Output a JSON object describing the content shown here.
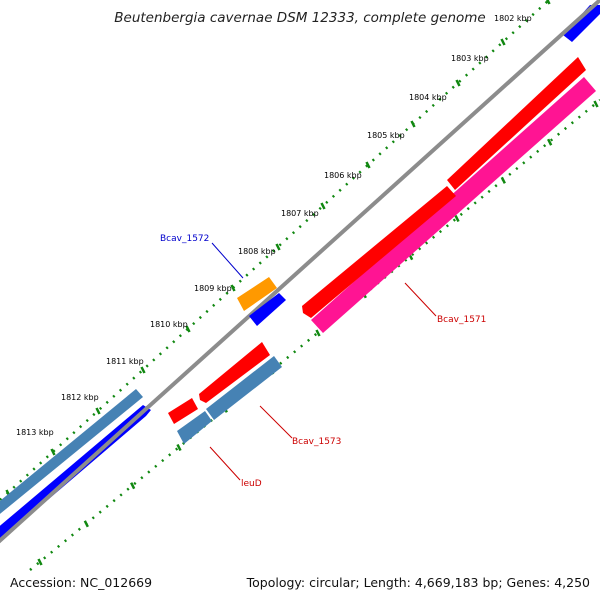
{
  "title": "Beutenbergia cavernae DSM 12333, complete genome",
  "footer": {
    "accession": "Accession: NC_012669",
    "summary": "Topology: circular; Length: 4,669,183 bp; Genes: 4,250"
  },
  "ruler": {
    "unit_labels": [
      "1802 kbp",
      "1803 kbp",
      "1804 kbp",
      "1805 kbp",
      "1806 kbp",
      "1807 kbp",
      "1808 kbp",
      "1809 kbp",
      "1810 kbp",
      "1811 kbp",
      "1812 kbp",
      "1813 kbp"
    ]
  },
  "genes": [
    {
      "label": "Bcav_1571",
      "color": "#cc0000"
    },
    {
      "label": "Bcav_1572",
      "color": "#0000cc"
    },
    {
      "label": "Bcav_1573",
      "color": "#cc0000"
    },
    {
      "label": "leuD",
      "color": "#cc0000"
    }
  ],
  "colors": {
    "backbone": "#8c8c8c",
    "tick": "#118811",
    "cds_red": "#ff0000",
    "cds_blue": "#0000ff",
    "cds_orange": "#ff9900",
    "cds_steel": "#4682b4",
    "gene_magenta": "#ff1493"
  }
}
